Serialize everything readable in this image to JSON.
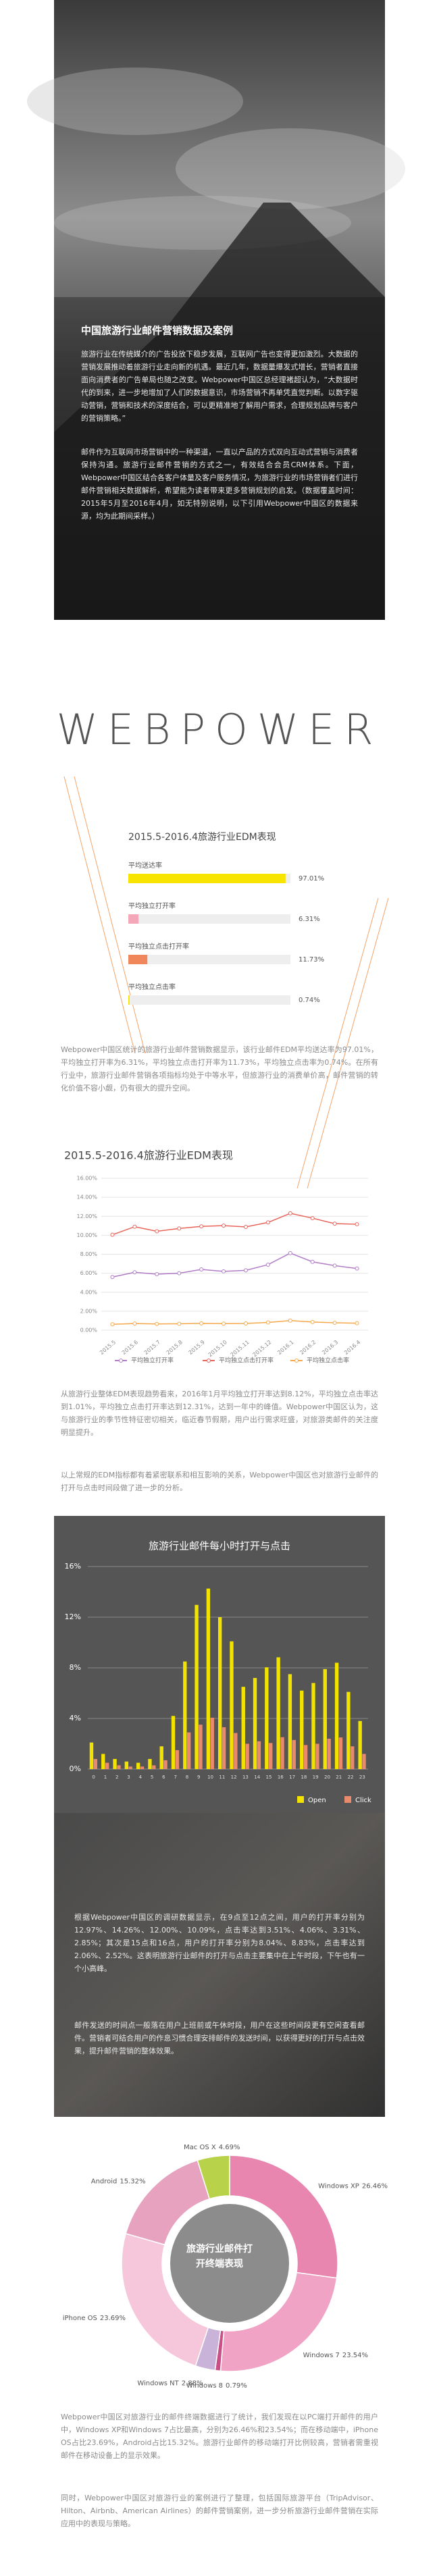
{
  "header": {
    "title": "中国旅游行业邮件营销数据及案例",
    "paragraphs": [
      "旅游行业在传统媒介的广告投放下稳步发展，互联网广告也变得更加激烈。大数据的营销发展推动着旅游行业走向新的机遇。最近几年，数据量爆发式增长，营销者直接面向消费者的广告单局也随之改变。Webpower中国区总经理褚超认为，“大数据时代的到来，进一步地增加了人们的数据意识，市场营销不再单凭直觉判断。以数字驱动营销，营销和技术的深度结合，可以更精准地了解用户需求，合理规划品牌与客户的营销策略。”",
      "邮件作为互联网市场营销中的一种渠道，一直以产品的方式双向互动式营销与消费者保持沟通。旅游行业邮件营销的方式之一，有效结合会员CRM体系。下面，Webpower中国区结合各客户体量及客户服务情况，为旅游行业的市场营销者们进行邮件营销相关数据解析，希望能为读者带来更多营销规划的启发。（数据覆盖时间：2015年5月至2016年4月，如无特别说明，以下引用Webpower中国区的数据来源，均为此期间采样。）"
    ]
  },
  "logo": "WEBPOWER",
  "texts": {
    "edm": "Webpower中国区统计的旅游行业邮件营销数据显示，该行业邮件EDM平均送达率为97.01%，平均独立打开率为6.31%，平均独立点击打开率为11.73%，平均独立点击率为0.74%。在所有行业中，旅游行业邮件营销各项指标均处于中等水平，但旅游行业的消费单价高，邮件营销的转化价值不容小觑，仍有很大的提升空间。",
    "trend1": "从旅游行业整体EDM表现趋势看来，2016年1月平均独立打开率达到8.12%，平均独立点击率达到1.01%，平均独立点击打开率达到12.31%，达到一年中的峰值。Webpower中国区认为，这与旅游行业的季节性特征密切相关，临近春节假期，用户出行需求旺盛，对旅游类邮件的关注度明显提升。",
    "trend2": "以上常规的EDM指标都有着紧密联系和相互影响的关系，Webpower中国区也对旅游行业邮件的打开与点击时间段做了进一步的分析。",
    "hour1": "根据Webpower中国区的调研数据显示，在9点至12点之间，用户的打开率分别为12.97%、14.26%、12.00%、10.09%，点击率达到3.51%、4.06%、3.31%、2.85%；其次是15点和16点，用户的打开率分别为8.04%、8.83%，点击率达到2.06%、2.52%。这表明旅游行业邮件的打开与点击主要集中在上午时段，下午也有一个小高峰。",
    "hour2": "邮件发送的时间点一般落在用户上班前或午休时段，用户在这些时间段更有空闲查看邮件。营销者可结合用户的作息习惯合理安排邮件的发送时间，以获得更好的打开与点击效果，提升邮件营销的整体效果。",
    "device1": "Webpower中国区对旅游行业的邮件终端数据进行了统计，我们发现在以PC端打开邮件的用户中，Windows XP和Windows 7占比最高，分别为26.46%和23.54%；而在移动端中，iPhone OS占比23.69%，Android占比15.32%。旅游行业邮件的移动端打开比例较高，营销者需重视邮件在移动设备上的显示效果。",
    "device2": "同时，Webpower中国区对旅游行业的案例进行了整理，包括国际旅游平台（TripAdvisor、Hilton、Airbnb、American Airlines）的邮件营销案例，进一步分析旅游行业邮件营销在实际应用中的表现与策略。"
  },
  "chart_data": [
    {
      "type": "hbar",
      "title": "2015.5-2016.4旅游行业EDM表现",
      "categories": [
        "平均送达率",
        "平均独立打开率",
        "平均独立点击打开率",
        "平均独立点击率"
      ],
      "values": [
        97.01,
        6.31,
        11.73,
        0.74
      ],
      "value_labels": [
        "97.01%",
        "6.31%",
        "11.73%",
        "0.74%"
      ],
      "colors": [
        "#f7e400",
        "#f4a7b9",
        "#f0875a",
        "#f7e400"
      ],
      "xlim": [
        0,
        100
      ]
    },
    {
      "type": "line",
      "title": "2015.5-2016.4旅游行业EDM表现",
      "categories": [
        "2015.5",
        "2015.6",
        "2015.7",
        "2015.8",
        "2015.9",
        "2015.10",
        "2015.11",
        "2015.12",
        "2016.1",
        "2016.2",
        "2016.3",
        "2016.4"
      ],
      "series": [
        {
          "name": "平均独立打开率",
          "color": "#b07cc6",
          "values": [
            5.6,
            6.1,
            5.9,
            6.0,
            6.4,
            6.2,
            6.3,
            6.9,
            8.12,
            7.2,
            6.8,
            6.5
          ]
        },
        {
          "name": "平均独立点击打开率",
          "color": "#e8635a",
          "values": [
            10.05,
            10.9,
            10.42,
            10.71,
            10.93,
            11.01,
            10.88,
            11.35,
            12.31,
            11.8,
            11.22,
            11.16
          ]
        },
        {
          "name": "平均独立点击率",
          "color": "#f4a84a",
          "values": [
            0.62,
            0.7,
            0.66,
            0.68,
            0.72,
            0.69,
            0.71,
            0.82,
            1.01,
            0.86,
            0.78,
            0.74
          ]
        }
      ],
      "ylim": [
        0,
        16
      ],
      "yticks": [
        {
          "value": 0,
          "label": "0.00%"
        },
        {
          "value": 2,
          "label": "2.00%"
        },
        {
          "value": 4,
          "label": "4.00%"
        },
        {
          "value": 6,
          "label": "6.00%"
        },
        {
          "value": 8,
          "label": "8.00%"
        },
        {
          "value": 10,
          "label": "10.00%"
        },
        {
          "value": 12,
          "label": "12.00%"
        },
        {
          "value": 14,
          "label": "14.00%"
        },
        {
          "value": 16,
          "label": "16.00%"
        }
      ],
      "grid": true
    },
    {
      "type": "bar",
      "title": "旅游行业邮件每小时打开与点击",
      "categories": [
        "0",
        "1",
        "2",
        "3",
        "4",
        "5",
        "6",
        "7",
        "8",
        "9",
        "10",
        "11",
        "12",
        "13",
        "14",
        "15",
        "16",
        "17",
        "18",
        "19",
        "20",
        "21",
        "22",
        "23"
      ],
      "series": [
        {
          "name": "Open",
          "color": "#f2e200",
          "values": [
            2.1,
            1.2,
            0.8,
            0.6,
            0.5,
            0.8,
            1.8,
            4.2,
            8.5,
            12.97,
            14.26,
            12.0,
            10.09,
            6.5,
            7.2,
            8.04,
            8.83,
            7.5,
            6.2,
            6.8,
            7.9,
            8.4,
            6.1,
            3.8
          ]
        },
        {
          "name": "Click",
          "color": "#e98a6c",
          "values": [
            0.8,
            0.5,
            0.3,
            0.2,
            0.2,
            0.3,
            0.7,
            1.5,
            2.9,
            3.51,
            4.06,
            3.31,
            2.85,
            2.0,
            2.2,
            2.06,
            2.52,
            2.3,
            1.9,
            2.0,
            2.4,
            2.5,
            1.8,
            1.2
          ]
        }
      ],
      "ylim": [
        0,
        16
      ],
      "yticks": [
        {
          "value": 0,
          "label": "0%"
        },
        {
          "value": 4,
          "label": "4%"
        },
        {
          "value": 8,
          "label": "8%"
        },
        {
          "value": 12,
          "label": "12%"
        },
        {
          "value": 16,
          "label": "16%"
        }
      ],
      "grid": true
    },
    {
      "type": "pie",
      "title": "旅游行业邮件打开终端表现",
      "categories": [
        "Windows XP",
        "Windows 7",
        "Windows 8",
        "Windows NT",
        "iPhone OS",
        "Android",
        "Mac OS X"
      ],
      "values": [
        26.46,
        23.54,
        0.79,
        2.88,
        23.69,
        15.32,
        4.69
      ],
      "value_labels": [
        "26.46%",
        "23.54%",
        "0.79%",
        "2.88%",
        "23.69%",
        "15.32%",
        "4.69%"
      ],
      "colors": [
        "#e986b0",
        "#f0a3c4",
        "#c94f86",
        "#c9b3d9",
        "#f6c7da",
        "#e7a2bf",
        "#b8d24a"
      ]
    }
  ]
}
